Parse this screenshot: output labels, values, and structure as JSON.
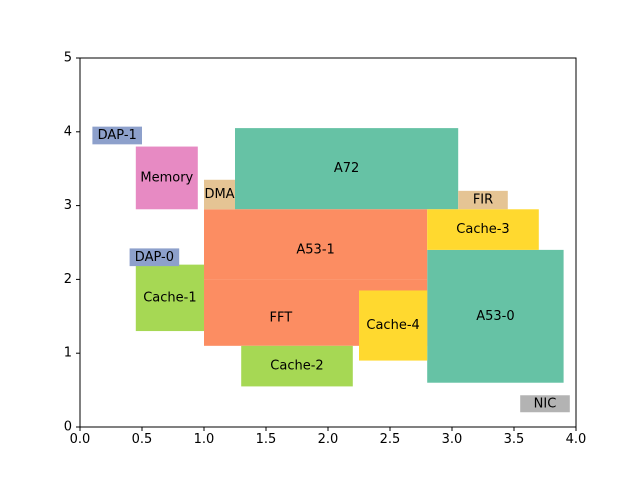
{
  "chart_data": {
    "type": "floorplan",
    "xlim": [
      0.0,
      4.0
    ],
    "ylim": [
      0,
      5
    ],
    "xticks": [
      "0.0",
      "0.5",
      "1.0",
      "1.5",
      "2.0",
      "2.5",
      "3.0",
      "3.5",
      "4.0"
    ],
    "yticks": [
      "0",
      "1",
      "2",
      "3",
      "4",
      "5"
    ],
    "grid": false,
    "blocks": [
      {
        "label": "A72",
        "x0": 1.25,
        "x1": 3.05,
        "y0": 2.95,
        "y1": 4.05,
        "color": "#66c2a5"
      },
      {
        "label": "A53-0",
        "x0": 2.8,
        "x1": 3.9,
        "y0": 0.6,
        "y1": 2.4,
        "color": "#66c2a5"
      },
      {
        "label": "A53-1",
        "x0": 1.0,
        "x1": 2.8,
        "y0": 2.0,
        "y1": 2.95,
        "color": "#fc8d62",
        "text_x": 1.9,
        "text_y": 2.4
      },
      {
        "label": "FFT",
        "x0": 1.0,
        "x1": 2.8,
        "y0": 1.1,
        "y1": 2.0,
        "color": "#fc8d62",
        "text_x": 1.62,
        "text_y": 1.48
      },
      {
        "label": "DMA",
        "x0": 1.0,
        "x1": 1.25,
        "y0": 2.95,
        "y1": 3.35,
        "color": "#e5c494"
      },
      {
        "label": "FIR",
        "x0": 3.05,
        "x1": 3.45,
        "y0": 2.95,
        "y1": 3.2,
        "color": "#e5c494"
      },
      {
        "label": "Cache-3",
        "x0": 2.8,
        "x1": 3.7,
        "y0": 2.4,
        "y1": 2.95,
        "color": "#ffd92f"
      },
      {
        "label": "Cache-4",
        "x0": 2.25,
        "x1": 2.8,
        "y0": 0.9,
        "y1": 1.85,
        "color": "#ffd92f"
      },
      {
        "label": "Cache-1",
        "x0": 0.45,
        "x1": 1.0,
        "y0": 1.3,
        "y1": 2.2,
        "color": "#a6d854"
      },
      {
        "label": "Cache-2",
        "x0": 1.3,
        "x1": 2.2,
        "y0": 0.55,
        "y1": 1.1,
        "color": "#a6d854"
      },
      {
        "label": "Memory",
        "x0": 0.45,
        "x1": 0.95,
        "y0": 2.95,
        "y1": 3.8,
        "color": "#e78ac3"
      },
      {
        "label": "DAP-1",
        "x0": 0.1,
        "x1": 0.5,
        "y0": 3.83,
        "y1": 4.07,
        "color": "#8da0cb"
      },
      {
        "label": "DAP-0",
        "x0": 0.4,
        "x1": 0.8,
        "y0": 2.18,
        "y1": 2.42,
        "color": "#8da0cb"
      },
      {
        "label": "NIC",
        "x0": 3.55,
        "x1": 3.95,
        "y0": 0.2,
        "y1": 0.43,
        "color": "#b3b3b3"
      }
    ]
  }
}
